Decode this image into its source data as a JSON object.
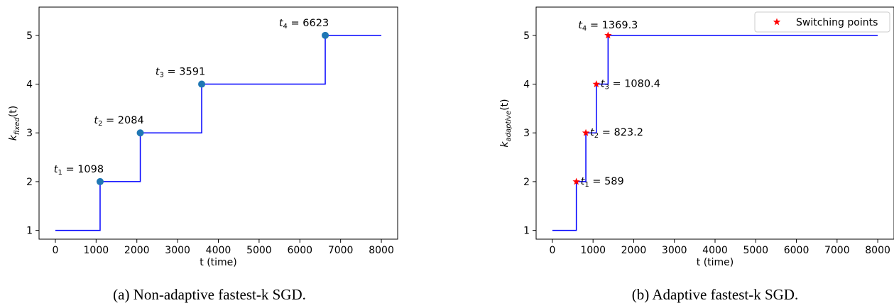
{
  "chart_data": [
    {
      "type": "line",
      "ylabel_main": "k",
      "ylabel_sub": "fixed",
      "ylabel_suffix": "(t)",
      "xlabel": "t (time)",
      "xlim": [
        -400,
        8400
      ],
      "ylim": [
        0.82,
        5.58
      ],
      "xticks": [
        0,
        1000,
        2000,
        3000,
        4000,
        5000,
        6000,
        7000,
        8000
      ],
      "yticks": [
        1,
        2,
        3,
        4,
        5
      ],
      "line_color": "#0000ff",
      "marker": "circle",
      "marker_color": "#1f77b4",
      "step_x": [
        0,
        1098,
        2084,
        3591,
        6623,
        8000
      ],
      "step_y": [
        1,
        2,
        3,
        4,
        5,
        5
      ],
      "points": [
        {
          "x": 1098,
          "y": 2,
          "label": "t₁ = 1098"
        },
        {
          "x": 2084,
          "y": 3,
          "label": "t₂ = 2084"
        },
        {
          "x": 3591,
          "y": 4,
          "label": "t₃ = 3591"
        },
        {
          "x": 6623,
          "y": 5,
          "label": "t₄ = 6623"
        }
      ],
      "caption": "(a) Non-adaptive fastest-k SGD.",
      "legend": null
    },
    {
      "type": "line",
      "ylabel_main": "k",
      "ylabel_sub": "adaptive",
      "ylabel_suffix": "(t)",
      "xlabel": "t (time)",
      "xlim": [
        -400,
        8400
      ],
      "ylim": [
        0.82,
        5.58
      ],
      "xticks": [
        0,
        1000,
        2000,
        3000,
        4000,
        5000,
        6000,
        7000,
        8000
      ],
      "yticks": [
        1,
        2,
        3,
        4,
        5
      ],
      "line_color": "#0000ff",
      "marker": "star",
      "marker_color": "#ff0000",
      "step_x": [
        0,
        589,
        823.2,
        1080.4,
        1369.3,
        8000
      ],
      "step_y": [
        1,
        2,
        3,
        4,
        5,
        5
      ],
      "points": [
        {
          "x": 589,
          "y": 2,
          "label": "t₁ = 589"
        },
        {
          "x": 823.2,
          "y": 3,
          "label": "t₂ = 823.2"
        },
        {
          "x": 1080.4,
          "y": 4,
          "label": "t₃ = 1080.4"
        },
        {
          "x": 1369.3,
          "y": 5,
          "label": "t₄ = 1369.3"
        }
      ],
      "caption": "(b) Adaptive fastest-k SGD.",
      "legend": {
        "label": "Switching points",
        "placement": "top-right"
      }
    }
  ]
}
